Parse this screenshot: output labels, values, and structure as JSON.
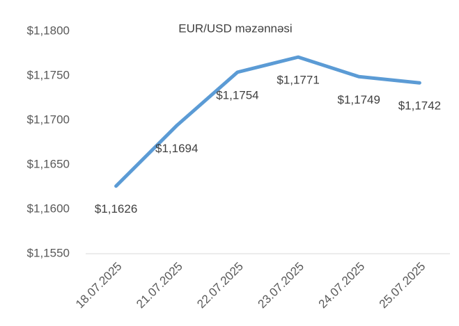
{
  "chart_data": {
    "type": "line",
    "title": "EUR/USD məzənnəsi",
    "categories": [
      "18.07.2025",
      "21.07.2025",
      "22.07.2025",
      "23.07.2025",
      "24.07.2025",
      "25.07.2025"
    ],
    "values": [
      1.1626,
      1.1694,
      1.1754,
      1.1771,
      1.1749,
      1.1742
    ],
    "value_labels": [
      "$1,1626",
      "$1,1694",
      "$1,1754",
      "$1,1771",
      "$1,1749",
      "$1,1742"
    ],
    "color": "#5b9bd5",
    "ylim": [
      1.155,
      1.18
    ],
    "yticks": [
      {
        "value": 1.155,
        "label": "$1,1550"
      },
      {
        "value": 1.16,
        "label": "$1,1600"
      },
      {
        "value": 1.165,
        "label": "$1,1650"
      },
      {
        "value": 1.17,
        "label": "$1,1700"
      },
      {
        "value": 1.175,
        "label": "$1,1750"
      },
      {
        "value": 1.18,
        "label": "$1,1800"
      }
    ],
    "grid": false
  }
}
